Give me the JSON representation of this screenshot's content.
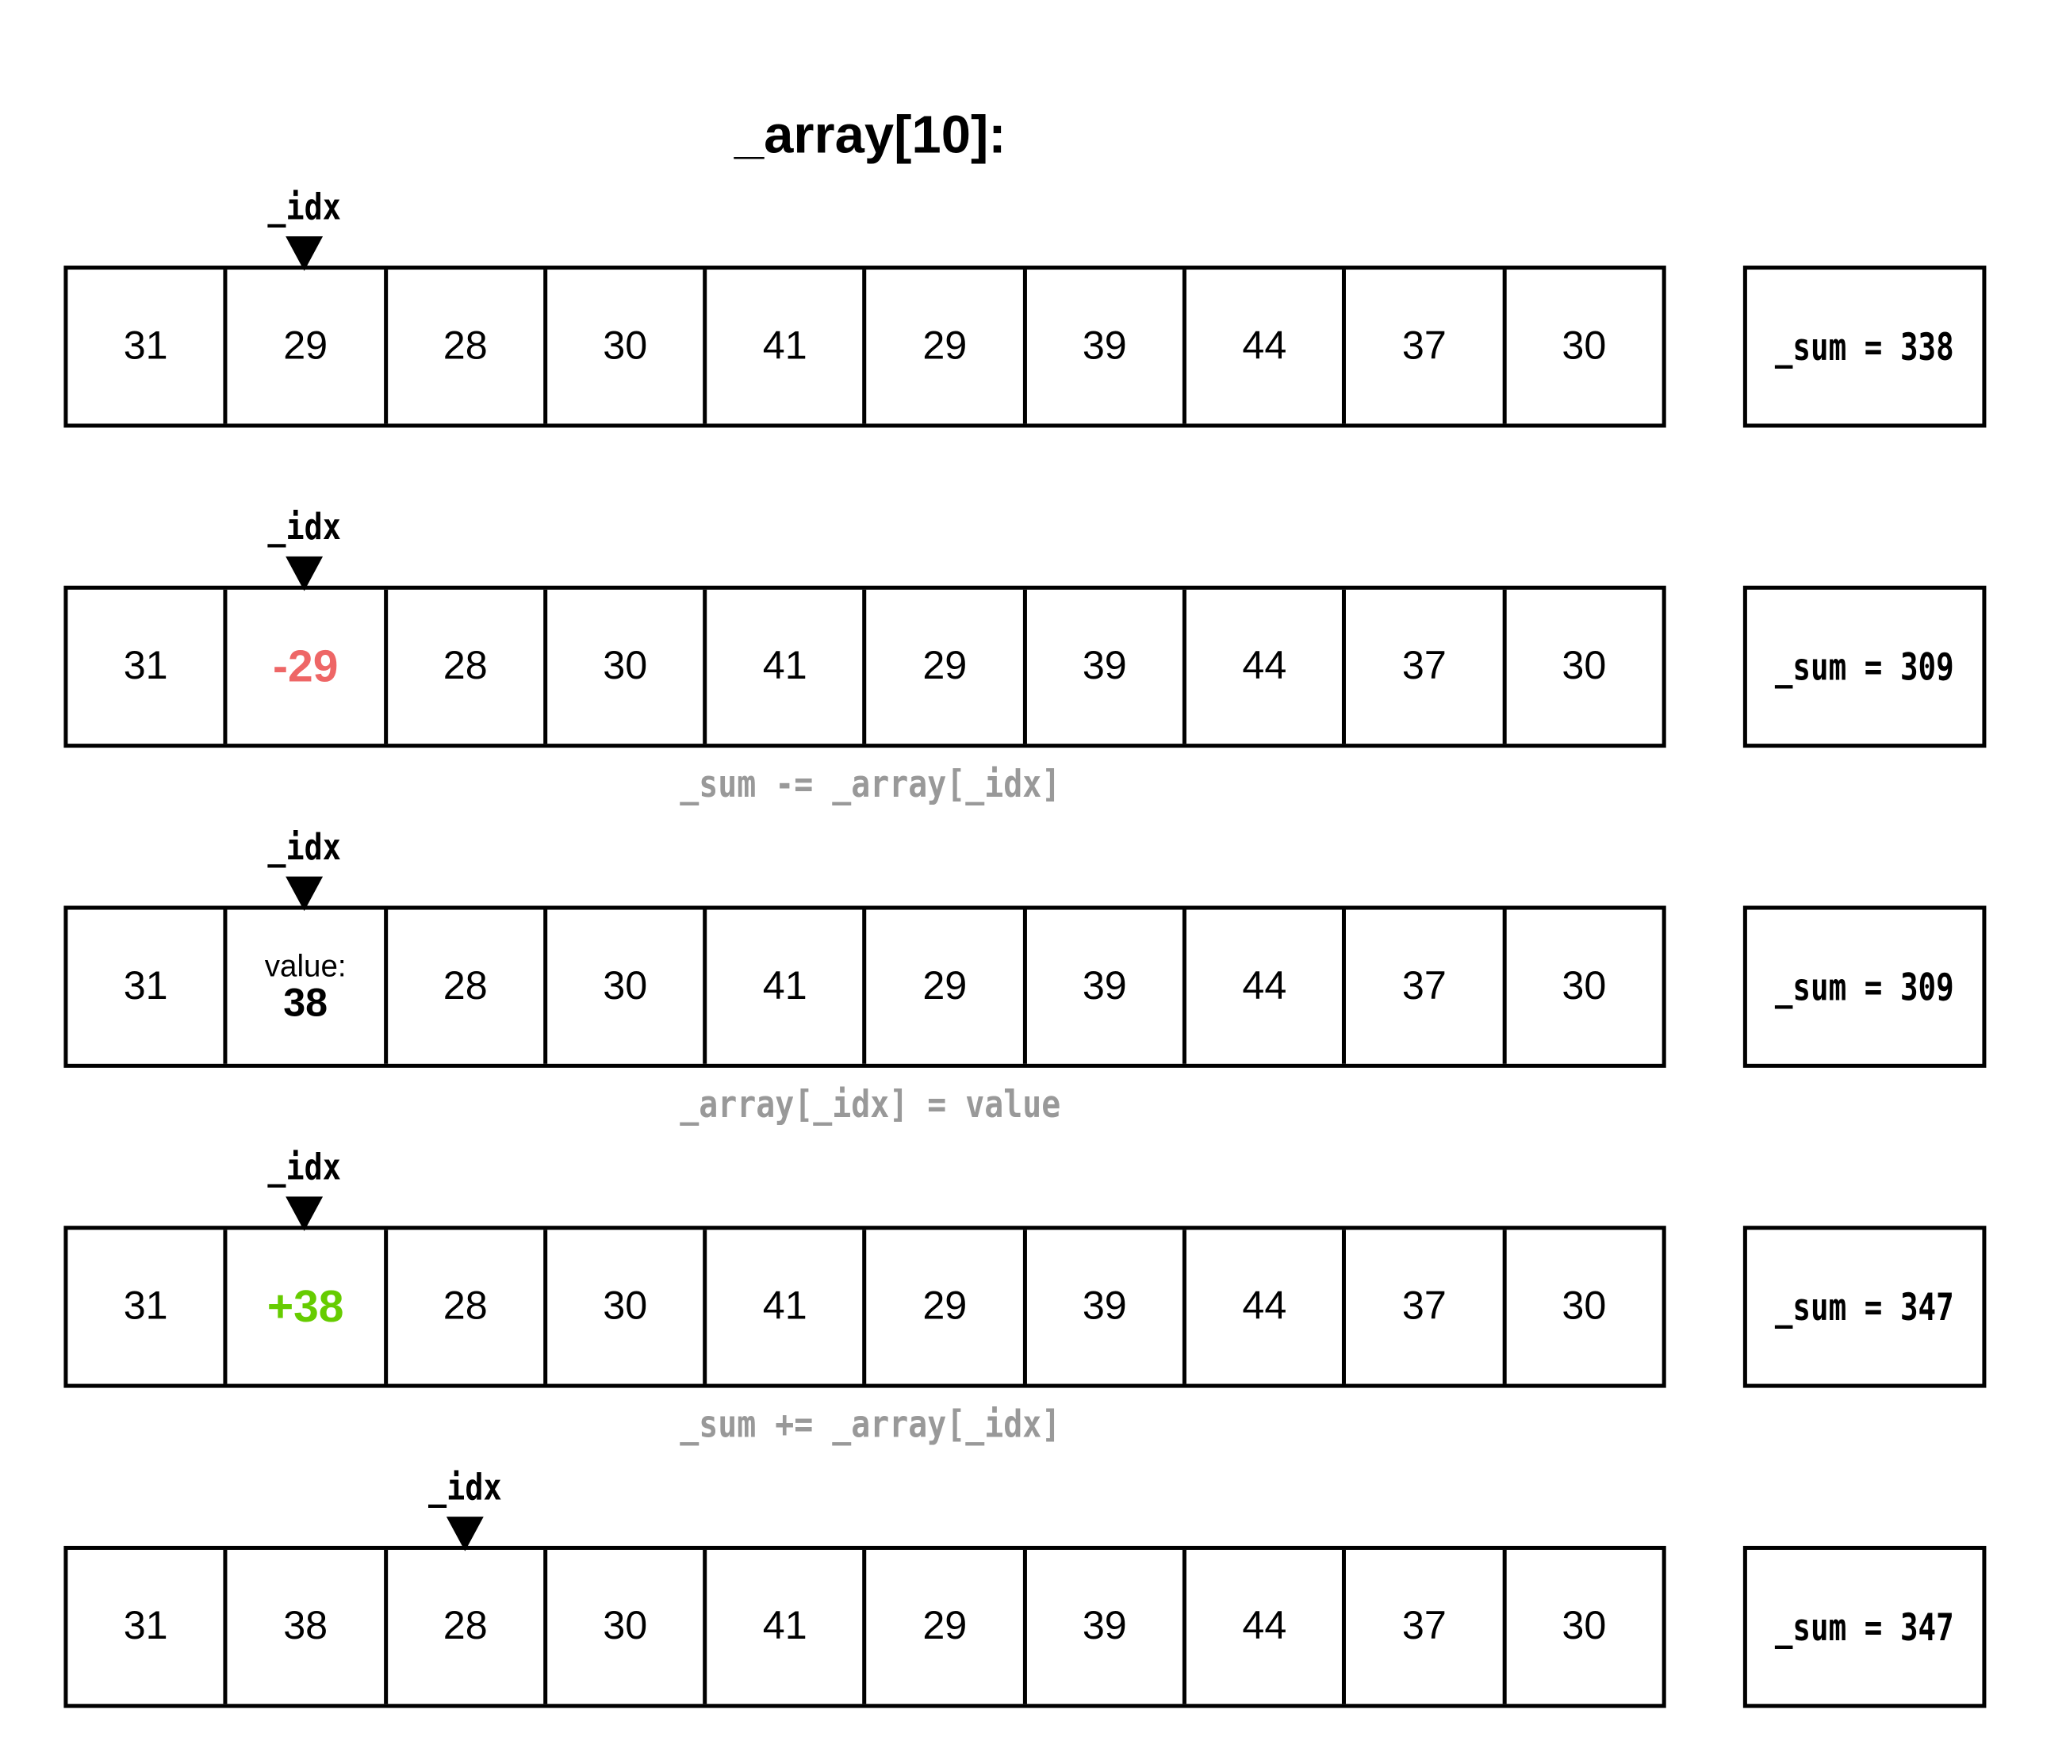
{
  "title": "_array[10]:",
  "idx_label": "_idx",
  "colors": {
    "text": "#000000",
    "removed": "#ee6666",
    "added": "#66cc00",
    "operation": "#999999"
  },
  "steps": [
    {
      "idx": 1,
      "cells": [
        "31",
        "29",
        "28",
        "30",
        "41",
        "29",
        "39",
        "44",
        "37",
        "30"
      ],
      "highlight": null,
      "sum": "_sum = 338",
      "operation": null
    },
    {
      "idx": 1,
      "cells": [
        "31",
        "-29",
        "28",
        "30",
        "41",
        "29",
        "39",
        "44",
        "37",
        "30"
      ],
      "highlight": {
        "index": 1,
        "style": "removed"
      },
      "sum": "_sum = 309",
      "operation": "_sum -= _array[_idx]"
    },
    {
      "idx": 1,
      "cells": [
        "31",
        "38",
        "28",
        "30",
        "41",
        "29",
        "39",
        "44",
        "37",
        "30"
      ],
      "highlight": {
        "index": 1,
        "style": "value",
        "label": "value:"
      },
      "sum": "_sum = 309",
      "operation": "_array[_idx] = value"
    },
    {
      "idx": 1,
      "cells": [
        "31",
        "+38",
        "28",
        "30",
        "41",
        "29",
        "39",
        "44",
        "37",
        "30"
      ],
      "highlight": {
        "index": 1,
        "style": "added"
      },
      "sum": "_sum = 347",
      "operation": "_sum += _array[_idx]"
    },
    {
      "idx": 2,
      "cells": [
        "31",
        "38",
        "28",
        "30",
        "41",
        "29",
        "39",
        "44",
        "37",
        "30"
      ],
      "highlight": null,
      "sum": "_sum = 347",
      "operation": null
    }
  ]
}
